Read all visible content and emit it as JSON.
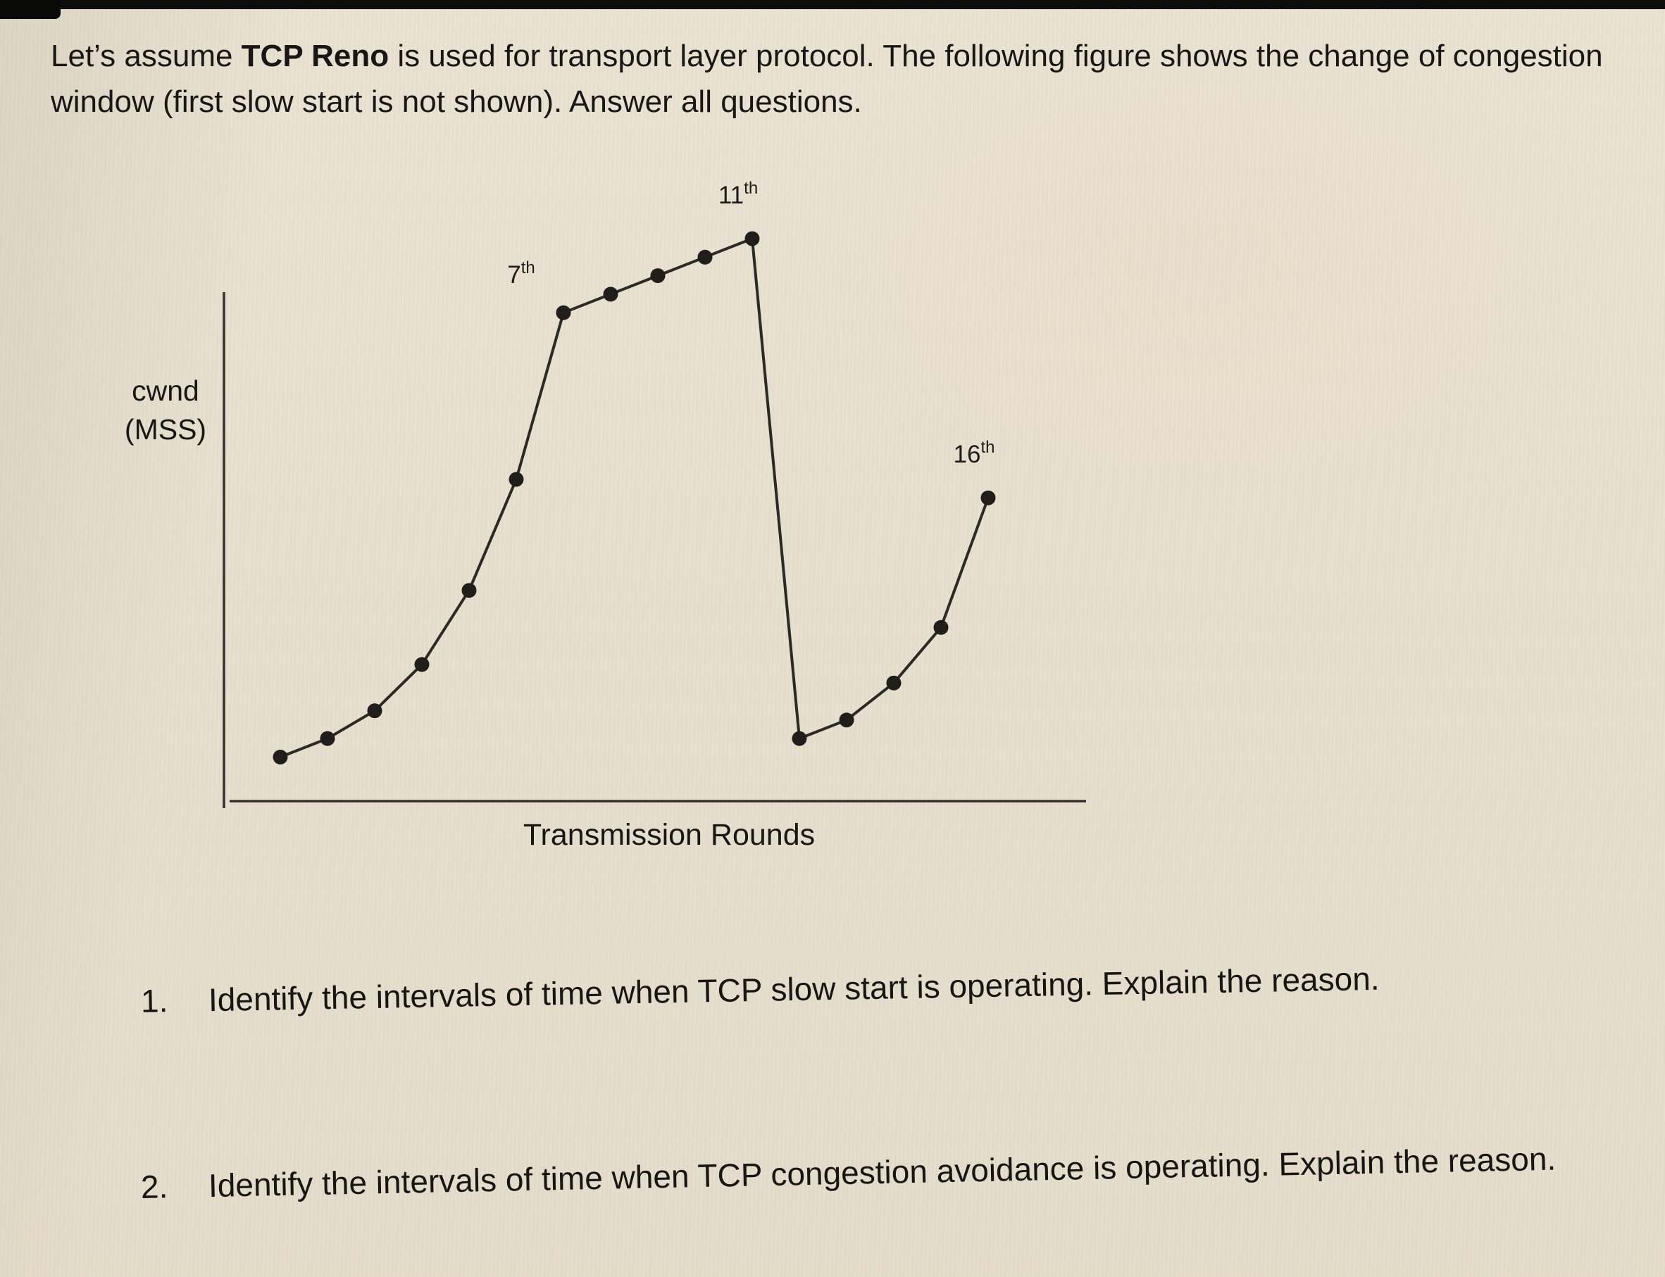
{
  "page": {
    "intro": {
      "pre": "Let’s assume ",
      "bold": "TCP Reno",
      "post": " is used for transport layer protocol. The following figure shows the change of congestion window (first slow start is not shown). Answer all questions."
    },
    "questions": [
      {
        "num": "1.",
        "text": "Identify the intervals of time when TCP slow start is operating. Explain the reason."
      },
      {
        "num": "2.",
        "text": "Identify the intervals of time when TCP congestion avoidance is operating. Explain the reason."
      }
    ]
  },
  "chart_data": {
    "type": "line",
    "x": [
      1,
      2,
      3,
      4,
      5,
      6,
      7,
      8,
      9,
      10,
      11,
      12,
      13,
      14,
      15,
      16
    ],
    "values": [
      2,
      3,
      4.5,
      7,
      11,
      17,
      26,
      27,
      28,
      29,
      30,
      3,
      4,
      6,
      9,
      16
    ],
    "title": "",
    "xlabel": "Transmission Rounds",
    "ylabel": "cwnd (MSS)",
    "ylim": [
      0,
      32
    ],
    "grid": false,
    "legend": "none",
    "marker": "filled-circle",
    "line_color": "#2c2a27",
    "axis_color": "#34312d",
    "point_color": "#201e1b",
    "tick_labels": "none",
    "annotations": [
      {
        "round": 7,
        "num": "7",
        "suffix": "th",
        "placement": "above-left"
      },
      {
        "round": 11,
        "num": "11",
        "suffix": "th",
        "placement": "above"
      },
      {
        "round": 16,
        "num": "16",
        "suffix": "th",
        "placement": "above"
      }
    ]
  }
}
